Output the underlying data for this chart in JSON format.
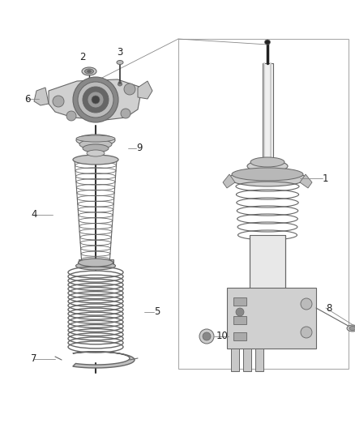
{
  "background_color": "#ffffff",
  "line_color": "#666666",
  "dark_color": "#333333",
  "light_gray": "#d8d8d8",
  "mid_gray": "#aaaaaa",
  "fig_width": 4.38,
  "fig_height": 5.33,
  "dpi": 100,
  "label_fontsize": 8.5,
  "label_color": "#222222",
  "leader_color": "#888888",
  "leader_lw": 0.6
}
